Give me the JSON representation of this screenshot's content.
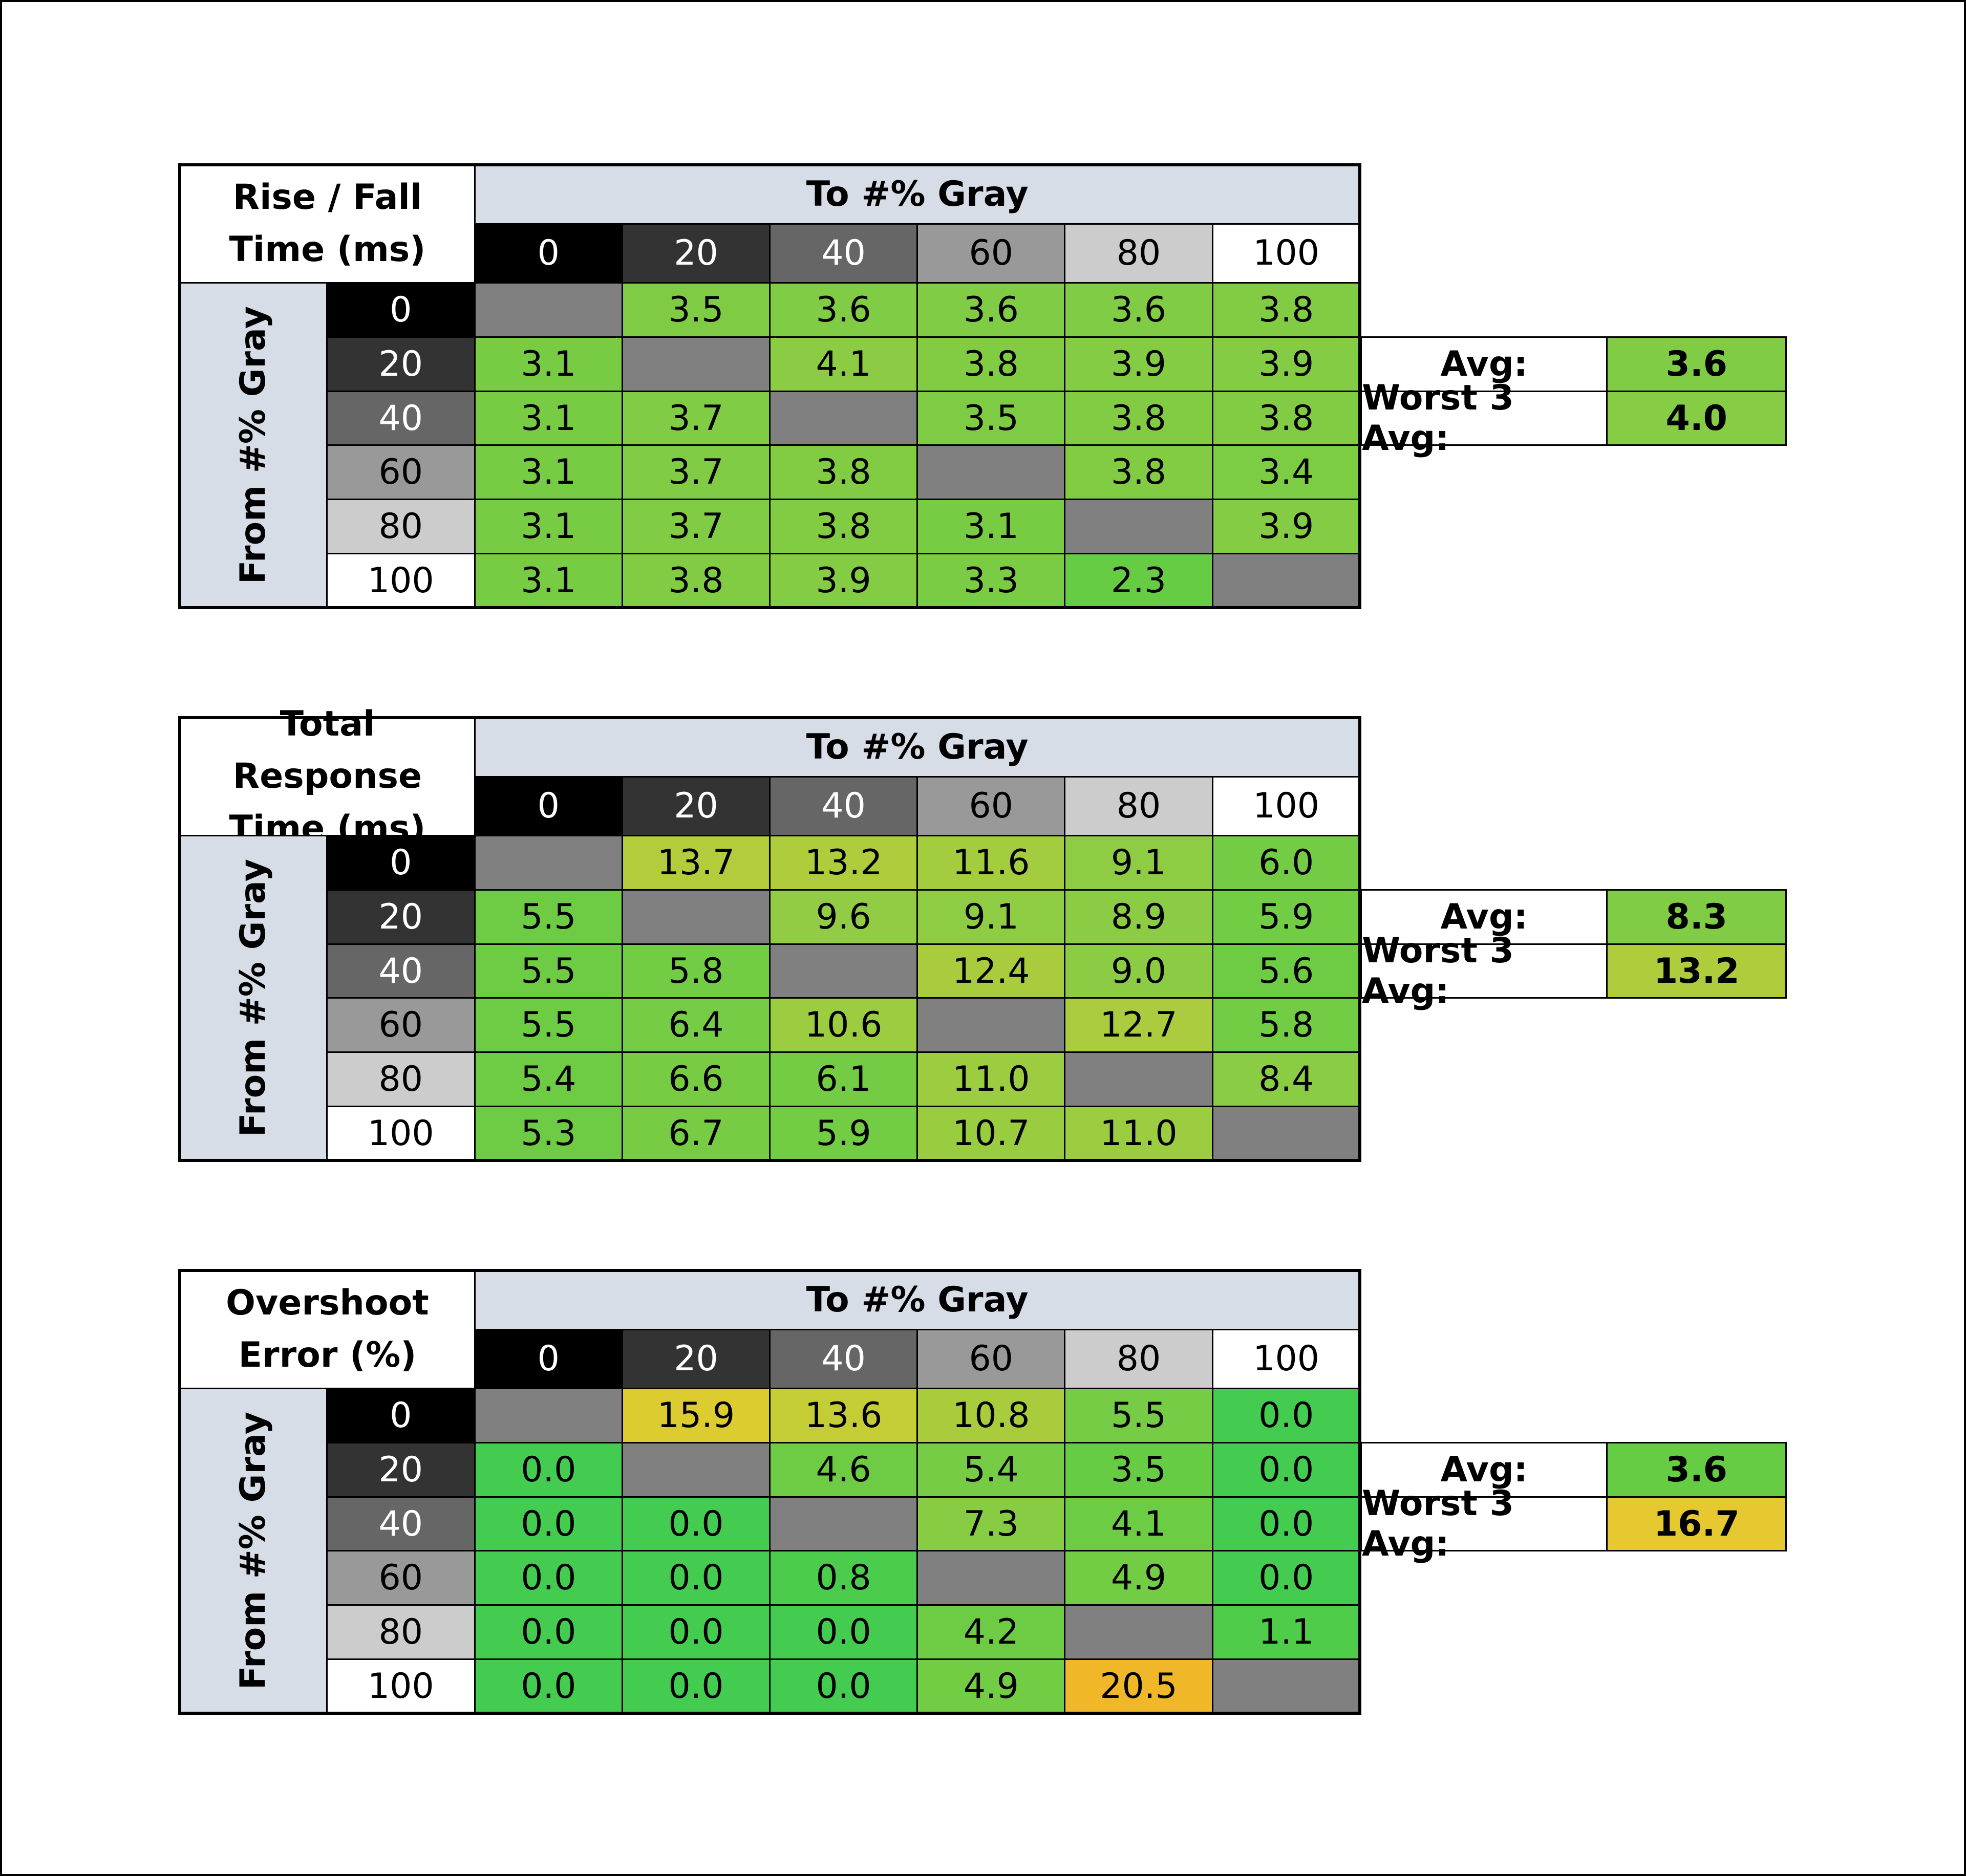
{
  "chart_data": [
    {
      "type": "table",
      "title_lines": [
        "Rise / Fall",
        "Time (ms)"
      ],
      "column_header": "To #% Gray",
      "row_header": "From #% Gray",
      "columns": [
        "0",
        "20",
        "40",
        "60",
        "80",
        "100"
      ],
      "rows": [
        "0",
        "20",
        "40",
        "60",
        "80",
        "100"
      ],
      "values": [
        [
          "",
          "3.5",
          "3.6",
          "3.6",
          "3.6",
          "3.8"
        ],
        [
          "3.1",
          "",
          "4.1",
          "3.8",
          "3.9",
          "3.9"
        ],
        [
          "3.1",
          "3.7",
          "",
          "3.5",
          "3.8",
          "3.8"
        ],
        [
          "3.1",
          "3.7",
          "3.8",
          "",
          "3.8",
          "3.4"
        ],
        [
          "3.1",
          "3.7",
          "3.8",
          "3.1",
          "",
          "3.9"
        ],
        [
          "3.1",
          "3.8",
          "3.9",
          "3.3",
          "2.3",
          ""
        ]
      ],
      "cell_colors": [
        [
          "#808080",
          "#7fcc44",
          "#80cc44",
          "#80cc44",
          "#80cc44",
          "#82cc44"
        ],
        [
          "#78cc44",
          "#808080",
          "#8ccc44",
          "#82cc44",
          "#84cc44",
          "#84cc44"
        ],
        [
          "#78cc44",
          "#80cc44",
          "#808080",
          "#7ecc44",
          "#82cc44",
          "#82cc44"
        ],
        [
          "#78cc44",
          "#80cc44",
          "#82cc44",
          "#808080",
          "#82cc44",
          "#7ccc44"
        ],
        [
          "#78cc44",
          "#80cc44",
          "#82cc44",
          "#78cc44",
          "#808080",
          "#84cc44"
        ],
        [
          "#78cc44",
          "#82cc44",
          "#84cc44",
          "#7acc44",
          "#66cc44",
          "#808080"
        ]
      ],
      "summary": [
        {
          "label": "Avg:",
          "value": "3.6",
          "color": "#80cc44"
        },
        {
          "label": "Worst 3 Avg:",
          "value": "4.0",
          "color": "#86cc44"
        }
      ]
    },
    {
      "type": "table",
      "title_lines": [
        "Total Response",
        "Time (ms)"
      ],
      "column_header": "To #% Gray",
      "row_header": "From #% Gray",
      "columns": [
        "0",
        "20",
        "40",
        "60",
        "80",
        "100"
      ],
      "rows": [
        "0",
        "20",
        "40",
        "60",
        "80",
        "100"
      ],
      "values": [
        [
          "",
          "13.7",
          "13.2",
          "11.6",
          "9.1",
          "6.0"
        ],
        [
          "5.5",
          "",
          "9.6",
          "9.1",
          "8.9",
          "5.9"
        ],
        [
          "5.5",
          "5.8",
          "",
          "12.4",
          "9.0",
          "5.6"
        ],
        [
          "5.5",
          "6.4",
          "10.6",
          "",
          "12.7",
          "5.8"
        ],
        [
          "5.4",
          "6.6",
          "6.1",
          "11.0",
          "",
          "8.4"
        ],
        [
          "5.3",
          "6.7",
          "5.9",
          "10.7",
          "11.0",
          ""
        ]
      ],
      "cell_colors": [
        [
          "#808080",
          "#b3cc3c",
          "#aecc3c",
          "#a3cc3e",
          "#8ecc44",
          "#74cc44"
        ],
        [
          "#6ecc44",
          "#808080",
          "#92cc44",
          "#8ecc44",
          "#8ccc44",
          "#72cc44"
        ],
        [
          "#6ecc44",
          "#72cc44",
          "#808080",
          "#a8cc3e",
          "#8ccc44",
          "#6ecc44"
        ],
        [
          "#6ecc44",
          "#76cc44",
          "#9ccc40",
          "#808080",
          "#abcc3e",
          "#72cc44"
        ],
        [
          "#6ecc44",
          "#78cc44",
          "#74cc44",
          "#9ccc40",
          "#808080",
          "#8acc44"
        ],
        [
          "#6ecc44",
          "#78cc44",
          "#72cc44",
          "#9acc40",
          "#9ccc40",
          "#808080"
        ]
      ],
      "summary": [
        {
          "label": "Avg:",
          "value": "8.3",
          "color": "#80cc44"
        },
        {
          "label": "Worst 3 Avg:",
          "value": "13.2",
          "color": "#aecc3c"
        }
      ]
    },
    {
      "type": "table",
      "title_lines": [
        "Overshoot",
        "Error (%)"
      ],
      "column_header": "To #% Gray",
      "row_header": "From #% Gray",
      "columns": [
        "0",
        "20",
        "40",
        "60",
        "80",
        "100"
      ],
      "rows": [
        "0",
        "20",
        "40",
        "60",
        "80",
        "100"
      ],
      "values": [
        [
          "",
          "15.9",
          "13.6",
          "10.8",
          "5.5",
          "0.0"
        ],
        [
          "0.0",
          "",
          "4.6",
          "5.4",
          "3.5",
          "0.0"
        ],
        [
          "0.0",
          "0.0",
          "",
          "7.3",
          "4.1",
          "0.0"
        ],
        [
          "0.0",
          "0.0",
          "0.8",
          "",
          "4.9",
          "0.0"
        ],
        [
          "0.0",
          "0.0",
          "0.0",
          "4.2",
          "",
          "1.1"
        ],
        [
          "0.0",
          "0.0",
          "0.0",
          "4.9",
          "20.5",
          ""
        ]
      ],
      "cell_colors": [
        [
          "#808080",
          "#dccc30",
          "#c4cc36",
          "#a8cc3c",
          "#76cc44",
          "#44cc50"
        ],
        [
          "#44cc50",
          "#808080",
          "#6ecc44",
          "#76cc44",
          "#66cc44",
          "#44cc50"
        ],
        [
          "#44cc50",
          "#44cc50",
          "#808080",
          "#88cc44",
          "#6ccc44",
          "#44cc50"
        ],
        [
          "#44cc50",
          "#44cc50",
          "#4ccc4c",
          "#808080",
          "#72cc44",
          "#44cc50"
        ],
        [
          "#44cc50",
          "#44cc50",
          "#44cc50",
          "#6ecc44",
          "#808080",
          "#4ecc4a"
        ],
        [
          "#44cc50",
          "#44cc50",
          "#44cc50",
          "#72cc44",
          "#f0b828",
          "#808080"
        ]
      ],
      "summary": [
        {
          "label": "Avg:",
          "value": "3.6",
          "color": "#66cc44"
        },
        {
          "label": "Worst 3 Avg:",
          "value": "16.7",
          "color": "#e6c830"
        }
      ]
    }
  ],
  "header_shades": {
    "0": "#000000",
    "20": "#333333",
    "40": "#666666",
    "60": "#999999",
    "80": "#cccccc",
    "100": "#ffffff"
  }
}
